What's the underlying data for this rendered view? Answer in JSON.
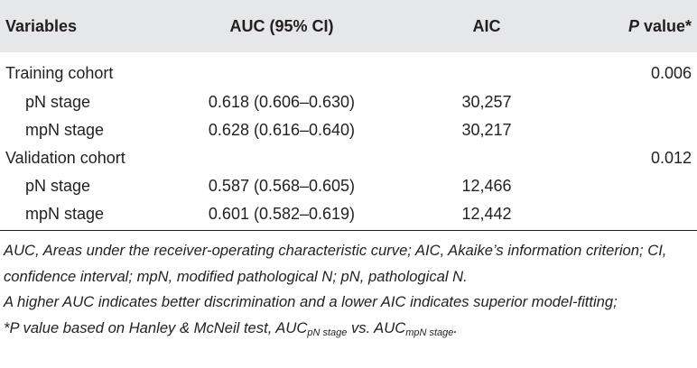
{
  "table": {
    "header": [
      [
        "Variables"
      ],
      [
        "AUC (95% CI)"
      ],
      [
        "AIC"
      ],
      [
        "P",
        " value*"
      ]
    ],
    "rows": [
      [
        "Training cohort",
        "",
        "",
        "0.006"
      ],
      [
        "pN stage",
        "0.618 (0.606–0.630)",
        "30,257",
        ""
      ],
      [
        "mpN stage",
        "0.628 (0.616–0.640)",
        "30,217",
        ""
      ],
      [
        "Validation cohort",
        "",
        "",
        "0.012"
      ],
      [
        "pN stage",
        "0.587 (0.568–0.605)",
        "12,466",
        ""
      ],
      [
        "mpN stage",
        "0.601 (0.582–0.619)",
        "12,442",
        ""
      ]
    ],
    "footnotes": [
      [
        "AUC, Areas under the receiver-operating characteristic curve; AIC, Akaike’s information criterion; CI, confidence interval; mpN, modified pathological N; pN, pathological N."
      ],
      [
        "A higher AUC indicates better discrimination and a lower AIC indicates superior model-fitting;"
      ],
      [
        "*P value based on Hanley & McNeil test, AUC",
        "pN stage",
        " vs. AUC",
        "mpN stage",
        "."
      ]
    ]
  }
}
